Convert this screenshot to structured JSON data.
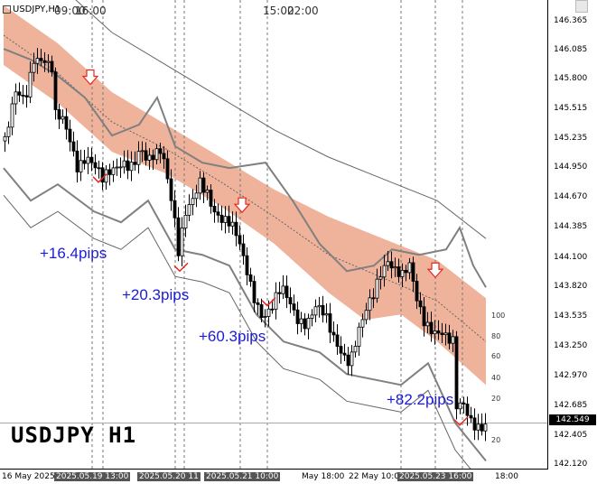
{
  "window": {
    "symbol_title": "USDJPY,H1",
    "top_times": [
      "09:00",
      "16:00",
      "15:00",
      "22:00"
    ],
    "big_label": "USDJPY  H1"
  },
  "pips_labels": [
    "+16.4pips",
    "+20.3pips",
    "+60.3pips",
    "+82.2pips"
  ],
  "price_axis": {
    "labels": [
      "146.365",
      "146.085",
      "145.800",
      "145.515",
      "145.235",
      "144.950",
      "144.670",
      "144.385",
      "144.100",
      "143.820",
      "143.535",
      "143.250",
      "142.970",
      "142.685",
      "142.405",
      "142.120"
    ],
    "current_price": "142.549",
    "cci_levels": [
      "100",
      "80",
      "60",
      "40",
      "20",
      "20"
    ]
  },
  "time_axis": {
    "labels": [
      "16 May 2025",
      "2025.05.19 13:00",
      "2025.05.20 11",
      "2025.05.21 10:00",
      "May 18:00",
      "22 May 10:0",
      "2025.05.23 16:00",
      "18:00"
    ]
  },
  "colors": {
    "band_fill": "#efb39b",
    "pips_text": "#1c1cd6",
    "arrow_red": "#e8261b",
    "candle": "#000000",
    "envelope": "#808080"
  },
  "chart_data": {
    "type": "candlestick",
    "symbol": "USDJPY",
    "timeframe": "H1",
    "y_range": [
      142.12,
      146.45
    ],
    "current_price": 142.549,
    "path": [
      [
        0,
        145.15
      ],
      [
        12,
        145.55
      ],
      [
        22,
        145.5
      ],
      [
        32,
        145.95
      ],
      [
        42,
        145.95
      ],
      [
        52,
        145.8
      ],
      [
        56,
        145.35
      ],
      [
        64,
        145.3
      ],
      [
        72,
        145.15
      ],
      [
        80,
        144.95
      ],
      [
        90,
        145.05
      ],
      [
        100,
        144.9
      ],
      [
        108,
        144.75
      ],
      [
        118,
        144.85
      ],
      [
        130,
        145.0
      ],
      [
        142,
        144.95
      ],
      [
        150,
        145.05
      ],
      [
        158,
        144.9
      ],
      [
        166,
        145.0
      ],
      [
        174,
        145.1
      ],
      [
        180,
        144.85
      ],
      [
        186,
        144.6
      ],
      [
        192,
        144.15
      ],
      [
        200,
        144.45
      ],
      [
        208,
        144.55
      ],
      [
        216,
        144.75
      ],
      [
        224,
        144.7
      ],
      [
        232,
        144.55
      ],
      [
        240,
        144.45
      ],
      [
        250,
        144.35
      ],
      [
        258,
        144.2
      ],
      [
        266,
        144.0
      ],
      [
        276,
        143.75
      ],
      [
        286,
        143.55
      ],
      [
        296,
        143.6
      ],
      [
        306,
        143.75
      ],
      [
        316,
        143.65
      ],
      [
        324,
        143.55
      ],
      [
        334,
        143.5
      ],
      [
        344,
        143.6
      ],
      [
        354,
        143.5
      ],
      [
        362,
        143.35
      ],
      [
        372,
        143.25
      ],
      [
        382,
        143.15
      ],
      [
        390,
        143.35
      ],
      [
        398,
        143.5
      ],
      [
        408,
        143.7
      ],
      [
        416,
        143.95
      ],
      [
        424,
        144.1
      ],
      [
        432,
        144.0
      ],
      [
        440,
        143.9
      ],
      [
        448,
        143.95
      ],
      [
        456,
        143.65
      ],
      [
        464,
        143.5
      ],
      [
        474,
        143.45
      ],
      [
        484,
        143.4
      ],
      [
        490,
        143.3
      ],
      [
        496,
        143.25
      ],
      [
        500,
        142.65
      ],
      [
        508,
        142.7
      ],
      [
        516,
        142.6
      ],
      [
        526,
        142.55
      ],
      [
        534,
        142.55
      ]
    ],
    "envelope_upper": [
      [
        0,
        146.0
      ],
      [
        30,
        145.9
      ],
      [
        60,
        145.75
      ],
      [
        90,
        145.55
      ],
      [
        120,
        145.2
      ],
      [
        150,
        145.3
      ],
      [
        170,
        145.55
      ],
      [
        190,
        145.1
      ],
      [
        220,
        144.95
      ],
      [
        250,
        144.9
      ],
      [
        290,
        144.95
      ],
      [
        320,
        144.6
      ],
      [
        350,
        144.2
      ],
      [
        380,
        143.95
      ],
      [
        410,
        144.0
      ],
      [
        430,
        144.15
      ],
      [
        460,
        144.1
      ],
      [
        490,
        144.15
      ],
      [
        505,
        144.35
      ],
      [
        520,
        144.0
      ],
      [
        534,
        143.8
      ]
    ],
    "envelope_lower": [
      [
        0,
        144.9
      ],
      [
        30,
        144.6
      ],
      [
        60,
        144.75
      ],
      [
        100,
        144.5
      ],
      [
        130,
        144.4
      ],
      [
        160,
        144.6
      ],
      [
        190,
        144.15
      ],
      [
        220,
        144.1
      ],
      [
        250,
        144.0
      ],
      [
        280,
        143.55
      ],
      [
        310,
        143.3
      ],
      [
        350,
        143.2
      ],
      [
        380,
        143.0
      ],
      [
        410,
        142.95
      ],
      [
        440,
        142.9
      ],
      [
        470,
        143.1
      ],
      [
        500,
        142.55
      ],
      [
        534,
        142.2
      ]
    ],
    "band_upper": [
      [
        0,
        146.4
      ],
      [
        60,
        146.05
      ],
      [
        120,
        145.6
      ],
      [
        180,
        145.3
      ],
      [
        240,
        145.0
      ],
      [
        300,
        144.7
      ],
      [
        360,
        144.45
      ],
      [
        420,
        144.25
      ],
      [
        480,
        144.05
      ],
      [
        534,
        143.7
      ]
    ],
    "band_lower": [
      [
        0,
        145.85
      ],
      [
        60,
        145.5
      ],
      [
        120,
        145.05
      ],
      [
        180,
        144.85
      ],
      [
        240,
        144.55
      ],
      [
        300,
        144.2
      ],
      [
        360,
        143.75
      ],
      [
        400,
        143.5
      ],
      [
        440,
        143.55
      ],
      [
        480,
        143.3
      ],
      [
        534,
        142.9
      ]
    ],
    "signals": [
      {
        "type": "sell_arrow",
        "x": 96,
        "price": 145.73
      },
      {
        "type": "sell_arrow",
        "x": 264,
        "price": 144.55
      },
      {
        "type": "sell_arrow",
        "x": 478,
        "price": 143.95
      },
      {
        "type": "buy_mark",
        "x": 105,
        "price": 144.77
      },
      {
        "type": "buy_mark",
        "x": 195,
        "price": 143.95
      },
      {
        "type": "buy_mark",
        "x": 292,
        "price": 143.63
      },
      {
        "type": "buy_mark",
        "x": 505,
        "price": 142.53
      }
    ],
    "vlines_x": [
      98,
      110,
      190,
      200,
      262,
      292,
      440,
      478,
      508
    ]
  }
}
